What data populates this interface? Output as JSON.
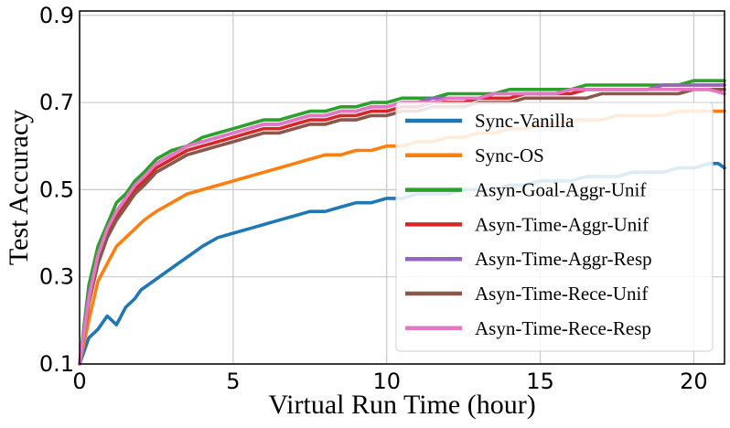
{
  "chart_data": {
    "type": "line",
    "title": "",
    "xlabel": "Virtual Run Time (hour)",
    "ylabel": "Test Accuracy",
    "xlim": [
      0,
      21
    ],
    "ylim": [
      0.1,
      0.91
    ],
    "x_ticks": [
      "0",
      "5",
      "10",
      "15",
      "20"
    ],
    "x_tick_values": [
      0,
      5,
      10,
      15,
      20
    ],
    "y_ticks": [
      "0.1",
      "0.3",
      "0.5",
      "0.7",
      "0.9"
    ],
    "y_tick_values": [
      0.1,
      0.3,
      0.5,
      0.7,
      0.9
    ],
    "grid": true,
    "legend_position": "bottom-right",
    "series": [
      {
        "name": "Sync-Vanilla",
        "color": "#1f77b4",
        "x": [
          0.0,
          0.3,
          0.6,
          0.9,
          1.2,
          1.5,
          1.8,
          2.0,
          2.4,
          2.8,
          3.2,
          3.6,
          4.0,
          4.5,
          5.0,
          5.5,
          6.0,
          6.5,
          7.0,
          7.5,
          8.0,
          8.5,
          9.0,
          9.5,
          10.0,
          10.5,
          11.0,
          11.5,
          12.0,
          12.5,
          13.0,
          13.5,
          14.0,
          14.5,
          15.0,
          15.5,
          16.0,
          16.5,
          17.0,
          17.5,
          18.0,
          18.5,
          19.0,
          19.5,
          20.0,
          20.5,
          20.8,
          21.0
        ],
        "values": [
          0.1,
          0.16,
          0.18,
          0.21,
          0.19,
          0.23,
          0.25,
          0.27,
          0.29,
          0.31,
          0.33,
          0.35,
          0.37,
          0.39,
          0.4,
          0.41,
          0.42,
          0.43,
          0.44,
          0.45,
          0.45,
          0.46,
          0.47,
          0.47,
          0.48,
          0.48,
          0.49,
          0.49,
          0.49,
          0.5,
          0.5,
          0.5,
          0.51,
          0.51,
          0.52,
          0.52,
          0.52,
          0.53,
          0.53,
          0.53,
          0.54,
          0.54,
          0.54,
          0.55,
          0.55,
          0.56,
          0.56,
          0.55
        ]
      },
      {
        "name": "Sync-OS",
        "color": "#ff7f0e",
        "x": [
          0.0,
          0.3,
          0.6,
          0.9,
          1.2,
          1.5,
          1.8,
          2.1,
          2.5,
          3.0,
          3.5,
          4.0,
          4.5,
          5.0,
          5.5,
          6.0,
          6.5,
          7.0,
          7.5,
          8.0,
          8.5,
          9.0,
          9.5,
          10.0,
          10.5,
          11.0,
          11.5,
          12.0,
          12.5,
          13.0,
          13.5,
          14.0,
          14.5,
          15.0,
          15.5,
          16.0,
          16.5,
          17.0,
          17.5,
          18.0,
          18.5,
          19.0,
          19.5,
          20.0,
          20.5,
          21.0
        ],
        "values": [
          0.1,
          0.2,
          0.29,
          0.33,
          0.37,
          0.39,
          0.41,
          0.43,
          0.45,
          0.47,
          0.49,
          0.5,
          0.51,
          0.52,
          0.53,
          0.54,
          0.55,
          0.56,
          0.57,
          0.58,
          0.58,
          0.59,
          0.59,
          0.6,
          0.6,
          0.61,
          0.61,
          0.62,
          0.62,
          0.63,
          0.63,
          0.64,
          0.64,
          0.65,
          0.65,
          0.66,
          0.66,
          0.66,
          0.67,
          0.67,
          0.67,
          0.67,
          0.68,
          0.68,
          0.68,
          0.68
        ]
      },
      {
        "name": "Asyn-Goal-Aggr-Unif",
        "color": "#2ca02c",
        "x": [
          0.0,
          0.3,
          0.6,
          0.9,
          1.2,
          1.5,
          1.8,
          2.1,
          2.5,
          3.0,
          3.5,
          4.0,
          4.5,
          5.0,
          5.5,
          6.0,
          6.5,
          7.0,
          7.5,
          8.0,
          8.5,
          9.0,
          9.5,
          10.0,
          10.5,
          11.0,
          11.5,
          12.0,
          12.5,
          13.0,
          13.5,
          14.0,
          14.5,
          15.0,
          15.5,
          16.0,
          16.5,
          17.0,
          17.5,
          18.0,
          18.5,
          19.0,
          19.5,
          20.0,
          20.5,
          21.0
        ],
        "values": [
          0.1,
          0.28,
          0.37,
          0.42,
          0.47,
          0.49,
          0.52,
          0.54,
          0.57,
          0.59,
          0.6,
          0.62,
          0.63,
          0.64,
          0.65,
          0.66,
          0.66,
          0.67,
          0.68,
          0.68,
          0.69,
          0.69,
          0.7,
          0.7,
          0.71,
          0.71,
          0.71,
          0.72,
          0.72,
          0.72,
          0.72,
          0.73,
          0.73,
          0.73,
          0.73,
          0.73,
          0.74,
          0.74,
          0.74,
          0.74,
          0.74,
          0.74,
          0.74,
          0.75,
          0.75,
          0.75
        ]
      },
      {
        "name": "Asyn-Time-Aggr-Unif",
        "color": "#d62728",
        "x": [
          0.0,
          0.3,
          0.6,
          0.9,
          1.2,
          1.5,
          1.8,
          2.1,
          2.5,
          3.0,
          3.5,
          4.0,
          4.5,
          5.0,
          5.5,
          6.0,
          6.5,
          7.0,
          7.5,
          8.0,
          8.5,
          9.0,
          9.5,
          10.0,
          10.5,
          11.0,
          11.5,
          12.0,
          12.5,
          13.0,
          13.5,
          14.0,
          14.5,
          15.0,
          15.5,
          16.0,
          16.5,
          17.0,
          17.5,
          18.0,
          18.5,
          19.0,
          19.5,
          20.0,
          20.5,
          21.0
        ],
        "values": [
          0.1,
          0.25,
          0.34,
          0.4,
          0.44,
          0.47,
          0.5,
          0.52,
          0.55,
          0.57,
          0.59,
          0.6,
          0.61,
          0.62,
          0.63,
          0.64,
          0.64,
          0.65,
          0.66,
          0.66,
          0.67,
          0.67,
          0.68,
          0.68,
          0.69,
          0.69,
          0.7,
          0.7,
          0.7,
          0.71,
          0.71,
          0.71,
          0.72,
          0.72,
          0.72,
          0.72,
          0.73,
          0.73,
          0.73,
          0.73,
          0.73,
          0.74,
          0.74,
          0.74,
          0.74,
          0.74
        ]
      },
      {
        "name": "Asyn-Time-Aggr-Resp",
        "color": "#9467bd",
        "x": [
          0.0,
          0.3,
          0.6,
          0.9,
          1.2,
          1.5,
          1.8,
          2.1,
          2.5,
          3.0,
          3.5,
          4.0,
          4.5,
          5.0,
          5.5,
          6.0,
          6.5,
          7.0,
          7.5,
          8.0,
          8.5,
          9.0,
          9.5,
          10.0,
          10.5,
          11.0,
          11.5,
          12.0,
          12.5,
          13.0,
          13.5,
          14.0,
          14.5,
          15.0,
          15.5,
          16.0,
          16.5,
          17.0,
          17.5,
          18.0,
          18.5,
          19.0,
          19.5,
          20.0,
          20.5,
          21.0
        ],
        "values": [
          0.1,
          0.26,
          0.35,
          0.41,
          0.45,
          0.48,
          0.51,
          0.53,
          0.56,
          0.58,
          0.6,
          0.61,
          0.62,
          0.63,
          0.64,
          0.65,
          0.65,
          0.66,
          0.67,
          0.67,
          0.68,
          0.68,
          0.69,
          0.69,
          0.7,
          0.7,
          0.71,
          0.71,
          0.71,
          0.71,
          0.72,
          0.72,
          0.72,
          0.72,
          0.72,
          0.73,
          0.73,
          0.73,
          0.73,
          0.73,
          0.73,
          0.74,
          0.74,
          0.74,
          0.74,
          0.74
        ]
      },
      {
        "name": "Asyn-Time-Rece-Unif",
        "color": "#8c564b",
        "x": [
          0.0,
          0.3,
          0.6,
          0.9,
          1.2,
          1.5,
          1.8,
          2.1,
          2.5,
          3.0,
          3.5,
          4.0,
          4.5,
          5.0,
          5.5,
          6.0,
          6.5,
          7.0,
          7.5,
          8.0,
          8.5,
          9.0,
          9.5,
          10.0,
          10.5,
          11.0,
          11.5,
          12.0,
          12.5,
          13.0,
          13.5,
          14.0,
          14.5,
          15.0,
          15.5,
          16.0,
          16.5,
          17.0,
          17.5,
          18.0,
          18.5,
          19.0,
          19.5,
          20.0,
          20.5,
          21.0
        ],
        "values": [
          0.1,
          0.24,
          0.33,
          0.39,
          0.43,
          0.46,
          0.49,
          0.51,
          0.54,
          0.56,
          0.58,
          0.59,
          0.6,
          0.61,
          0.62,
          0.63,
          0.63,
          0.64,
          0.65,
          0.65,
          0.66,
          0.66,
          0.67,
          0.67,
          0.68,
          0.68,
          0.69,
          0.69,
          0.69,
          0.7,
          0.7,
          0.7,
          0.71,
          0.71,
          0.71,
          0.71,
          0.71,
          0.72,
          0.72,
          0.72,
          0.72,
          0.72,
          0.72,
          0.73,
          0.73,
          0.73
        ]
      },
      {
        "name": "Asyn-Time-Rece-Resp",
        "color": "#e377c2",
        "x": [
          0.0,
          0.3,
          0.6,
          0.9,
          1.2,
          1.5,
          1.8,
          2.1,
          2.5,
          3.0,
          3.5,
          4.0,
          4.5,
          5.0,
          5.5,
          6.0,
          6.5,
          7.0,
          7.5,
          8.0,
          8.5,
          9.0,
          9.5,
          10.0,
          10.5,
          11.0,
          11.5,
          12.0,
          12.5,
          13.0,
          13.5,
          14.0,
          14.5,
          15.0,
          15.5,
          16.0,
          16.5,
          17.0,
          17.5,
          18.0,
          18.5,
          19.0,
          19.5,
          20.0,
          20.5,
          21.0
        ],
        "values": [
          0.1,
          0.25,
          0.35,
          0.41,
          0.45,
          0.48,
          0.51,
          0.53,
          0.56,
          0.58,
          0.6,
          0.61,
          0.62,
          0.63,
          0.64,
          0.65,
          0.65,
          0.66,
          0.67,
          0.67,
          0.68,
          0.68,
          0.69,
          0.69,
          0.7,
          0.7,
          0.7,
          0.71,
          0.71,
          0.71,
          0.72,
          0.72,
          0.72,
          0.72,
          0.72,
          0.73,
          0.73,
          0.73,
          0.73,
          0.73,
          0.73,
          0.73,
          0.73,
          0.73,
          0.73,
          0.72
        ]
      }
    ]
  }
}
